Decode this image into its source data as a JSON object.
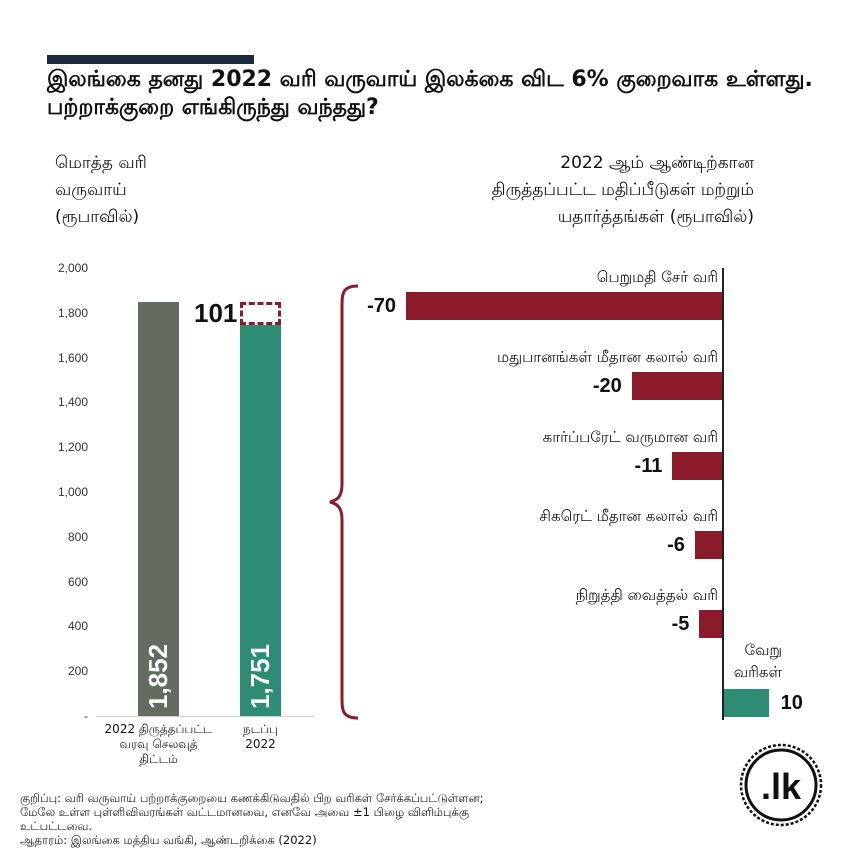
{
  "title": "இலங்கை தனது 2022 வரி வருவாய் இலக்கை விட 6% குறைவாக உள்ளது. பற்றாக்குறை எங்கிருந்து வந்தது?",
  "left_subtitle": [
    "மொத்த வரி",
    "வருவாய்",
    "(ரூபாவில்)"
  ],
  "right_subtitle": [
    "2022 ஆம் ஆண்டிற்கான",
    "திருத்தப்பட்ட மதிப்பீடுகள் மற்றும்",
    "யதார்த்தங்கள் (ரூபாவில்)"
  ],
  "colors": {
    "gray": "#646b60",
    "green": "#2e8b74",
    "red": "#8b1a2b",
    "navy": "#1b2a3c"
  },
  "chart_data": [
    {
      "type": "bar",
      "categories": [
        "2022 திருத்தப்பட்ட வரவு செலவுத் திட்டம்",
        "நடப்பு 2022"
      ],
      "category_lines": [
        [
          "2022 திருத்தப்பட்ட",
          "வரவு செலவுத்",
          "திட்டம்"
        ],
        [
          "நடப்பு",
          "2022"
        ]
      ],
      "values": [
        1852,
        1751
      ],
      "value_labels": [
        "1,852",
        "1,751"
      ],
      "gap": {
        "value": 101,
        "label": "101"
      },
      "ylim": [
        0,
        2000
      ],
      "yticks": [
        0,
        200,
        400,
        600,
        800,
        1000,
        1200,
        1400,
        1600,
        1800,
        2000
      ],
      "ytick_labels": [
        "-",
        "200",
        "400",
        "600",
        "800",
        "1,000",
        "1,200",
        "1,400",
        "1,600",
        "1,800",
        "2,000"
      ]
    },
    {
      "type": "bar",
      "orientation": "horizontal",
      "categories": [
        "பெறுமதி சேர் வரி",
        "மதுபானங்கள் மீதான கலால் வரி",
        "கார்ப்பரேட் வருமான வரி",
        "சிகரெட் மீதான கலால் வரி",
        "நிறுத்தி வைத்தல் வரி",
        "வேறு வரிகள்"
      ],
      "category_lines": [
        [
          "பெறுமதி சேர் வரி"
        ],
        [
          "மதுபானங்கள் மீதான கலால் வரி"
        ],
        [
          "கார்ப்பரேட் வருமான வரி"
        ],
        [
          "சிகரெட் மீதான கலால் வரி"
        ],
        [
          "நிறுத்தி வைத்தல் வரி"
        ],
        [
          "வேறு",
          "வரிகள்"
        ]
      ],
      "values": [
        -70,
        -20,
        -11,
        -6,
        -5,
        10
      ],
      "value_labels": [
        "-70",
        "-20",
        "-11",
        "-6",
        "-5",
        "10"
      ]
    }
  ],
  "footnote": [
    "குறிப்பு: வரி வருவாய் பற்றாக்குறையை கணக்கிடுவதில் பிற வரிகள் சேர்க்கப்பட்டுள்ளன;",
    "மேலே உள்ள புள்ளிவிவரங்கள் வட்டமானவை, எனவே அவை ±1 பிழை விளிம்புக்கு",
    "உட்பட்டவை.",
    "ஆதாரம்: இலங்கை மத்திய வங்கி, ஆண்டறிக்கை (2022)"
  ],
  "logo_text": ".lk"
}
